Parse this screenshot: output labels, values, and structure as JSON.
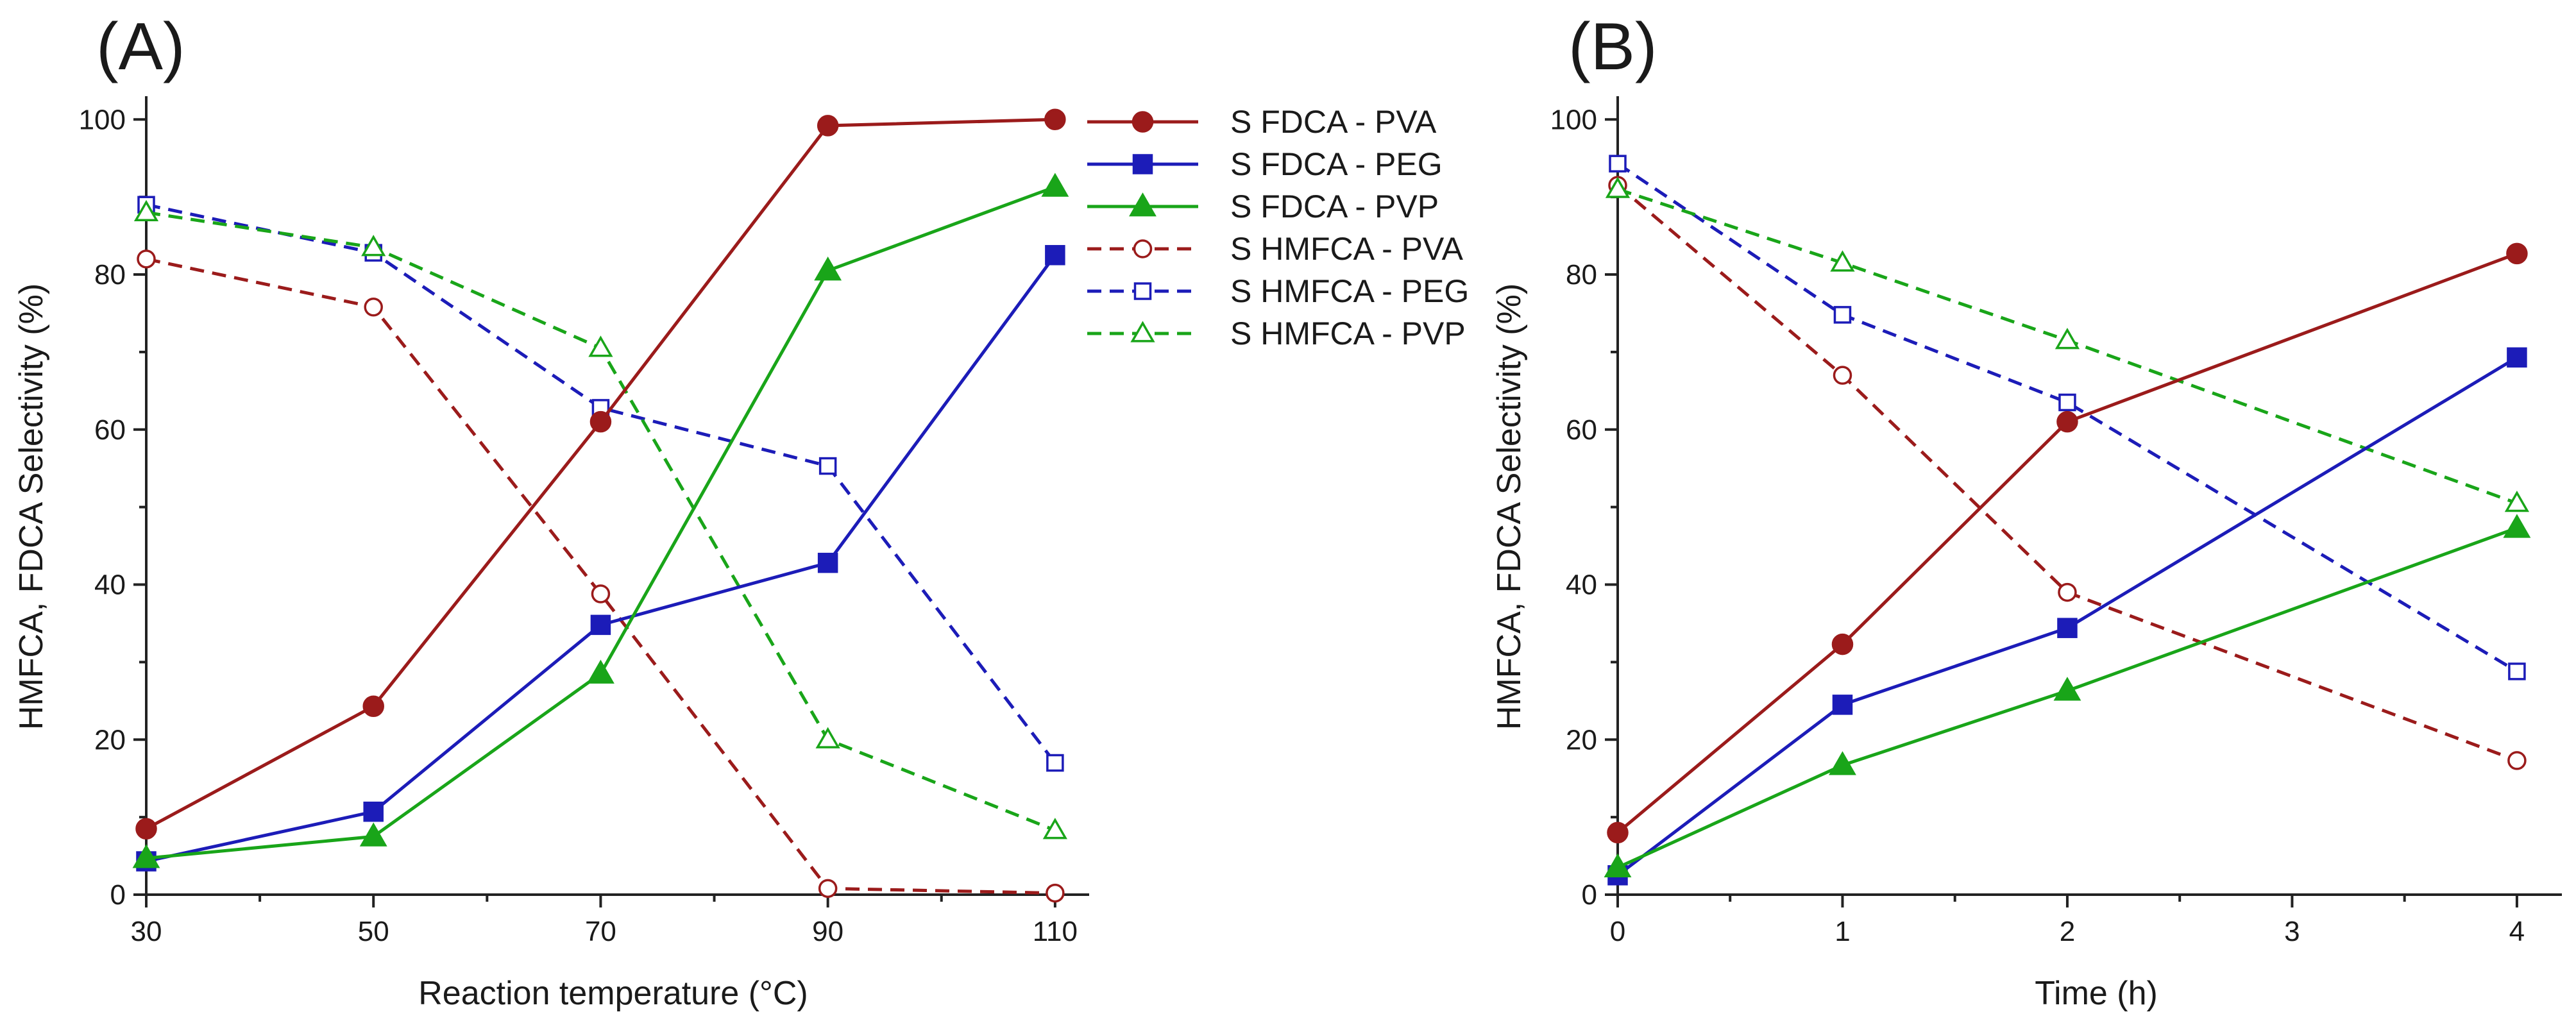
{
  "chart_data": [
    {
      "type": "line",
      "panel_label": "(A)",
      "xlabel": "Reaction temperature (°C)",
      "ylabel": "HMFCA, FDCA Selectivity (%)",
      "x": [
        30,
        50,
        70,
        90,
        110
      ],
      "xlim": [
        30,
        113
      ],
      "ylim": [
        0,
        103
      ],
      "xticks": [
        30,
        50,
        70,
        90,
        110
      ],
      "xminor": [
        40,
        60,
        80,
        100
      ],
      "yticks": [
        0,
        20,
        40,
        60,
        80,
        100
      ],
      "yminor": [
        10,
        30,
        50,
        70,
        90
      ],
      "legend_position": "right-outside",
      "series": [
        {
          "name": "S FDCA - PVA",
          "values": [
            8.5,
            24.3,
            61.0,
            99.2,
            100.0
          ],
          "color": "#9b1b1b",
          "dashed": false,
          "marker": "circle",
          "filled": true
        },
        {
          "name": "S FDCA - PEG",
          "values": [
            4.3,
            10.7,
            34.8,
            42.8,
            82.5
          ],
          "color": "#1c1cb8",
          "dashed": false,
          "marker": "square",
          "filled": true
        },
        {
          "name": "S FDCA - PVP",
          "values": [
            4.7,
            7.5,
            28.5,
            80.5,
            91.3
          ],
          "color": "#19a519",
          "dashed": false,
          "marker": "triangle",
          "filled": true
        },
        {
          "name": "S HMFCA - PVA",
          "values": [
            82.0,
            75.8,
            38.8,
            0.8,
            0.2
          ],
          "color": "#9b1b1b",
          "dashed": true,
          "marker": "circle",
          "filled": false
        },
        {
          "name": "S HMFCA - PEG",
          "values": [
            89.0,
            82.8,
            62.8,
            55.3,
            17.0
          ],
          "color": "#1c1cb8",
          "dashed": true,
          "marker": "square",
          "filled": false
        },
        {
          "name": "S HMFCA - PVP",
          "values": [
            88.0,
            83.5,
            70.5,
            20.0,
            8.3
          ],
          "color": "#19a519",
          "dashed": true,
          "marker": "triangle",
          "filled": false
        }
      ]
    },
    {
      "type": "line",
      "panel_label": "(B)",
      "xlabel": "Time (h)",
      "ylabel": "HMFCA, FDCA Selectivity (%)",
      "x": [
        0,
        1,
        2,
        4
      ],
      "xlim": [
        0,
        4.2
      ],
      "ylim": [
        0,
        103
      ],
      "xticks": [
        0,
        1,
        2,
        3,
        4
      ],
      "xminor": [
        0.5,
        1.5,
        2.5,
        3.5
      ],
      "yticks": [
        0,
        20,
        40,
        60,
        80,
        100
      ],
      "yminor": [
        10,
        30,
        50,
        70,
        90
      ],
      "series": [
        {
          "name": "S FDCA - PVA",
          "values": [
            8.0,
            32.3,
            61.0,
            82.7
          ],
          "color": "#9b1b1b",
          "dashed": false,
          "marker": "circle",
          "filled": true
        },
        {
          "name": "S FDCA - PEG",
          "values": [
            2.5,
            24.5,
            34.4,
            69.3
          ],
          "color": "#1c1cb8",
          "dashed": false,
          "marker": "square",
          "filled": true
        },
        {
          "name": "S FDCA - PVP",
          "values": [
            3.5,
            16.7,
            26.3,
            47.3
          ],
          "color": "#19a519",
          "dashed": false,
          "marker": "triangle",
          "filled": true
        },
        {
          "name": "S HMFCA - PVA",
          "values": [
            91.5,
            67.0,
            39.0,
            17.3
          ],
          "color": "#9b1b1b",
          "dashed": true,
          "marker": "circle",
          "filled": false
        },
        {
          "name": "S HMFCA - PEG",
          "values": [
            94.3,
            74.8,
            63.5,
            28.8
          ],
          "color": "#1c1cb8",
          "dashed": true,
          "marker": "square",
          "filled": false
        },
        {
          "name": "S HMFCA - PVP",
          "values": [
            91.0,
            81.5,
            71.5,
            50.5
          ],
          "color": "#19a519",
          "dashed": true,
          "marker": "triangle",
          "filled": false
        }
      ]
    }
  ]
}
